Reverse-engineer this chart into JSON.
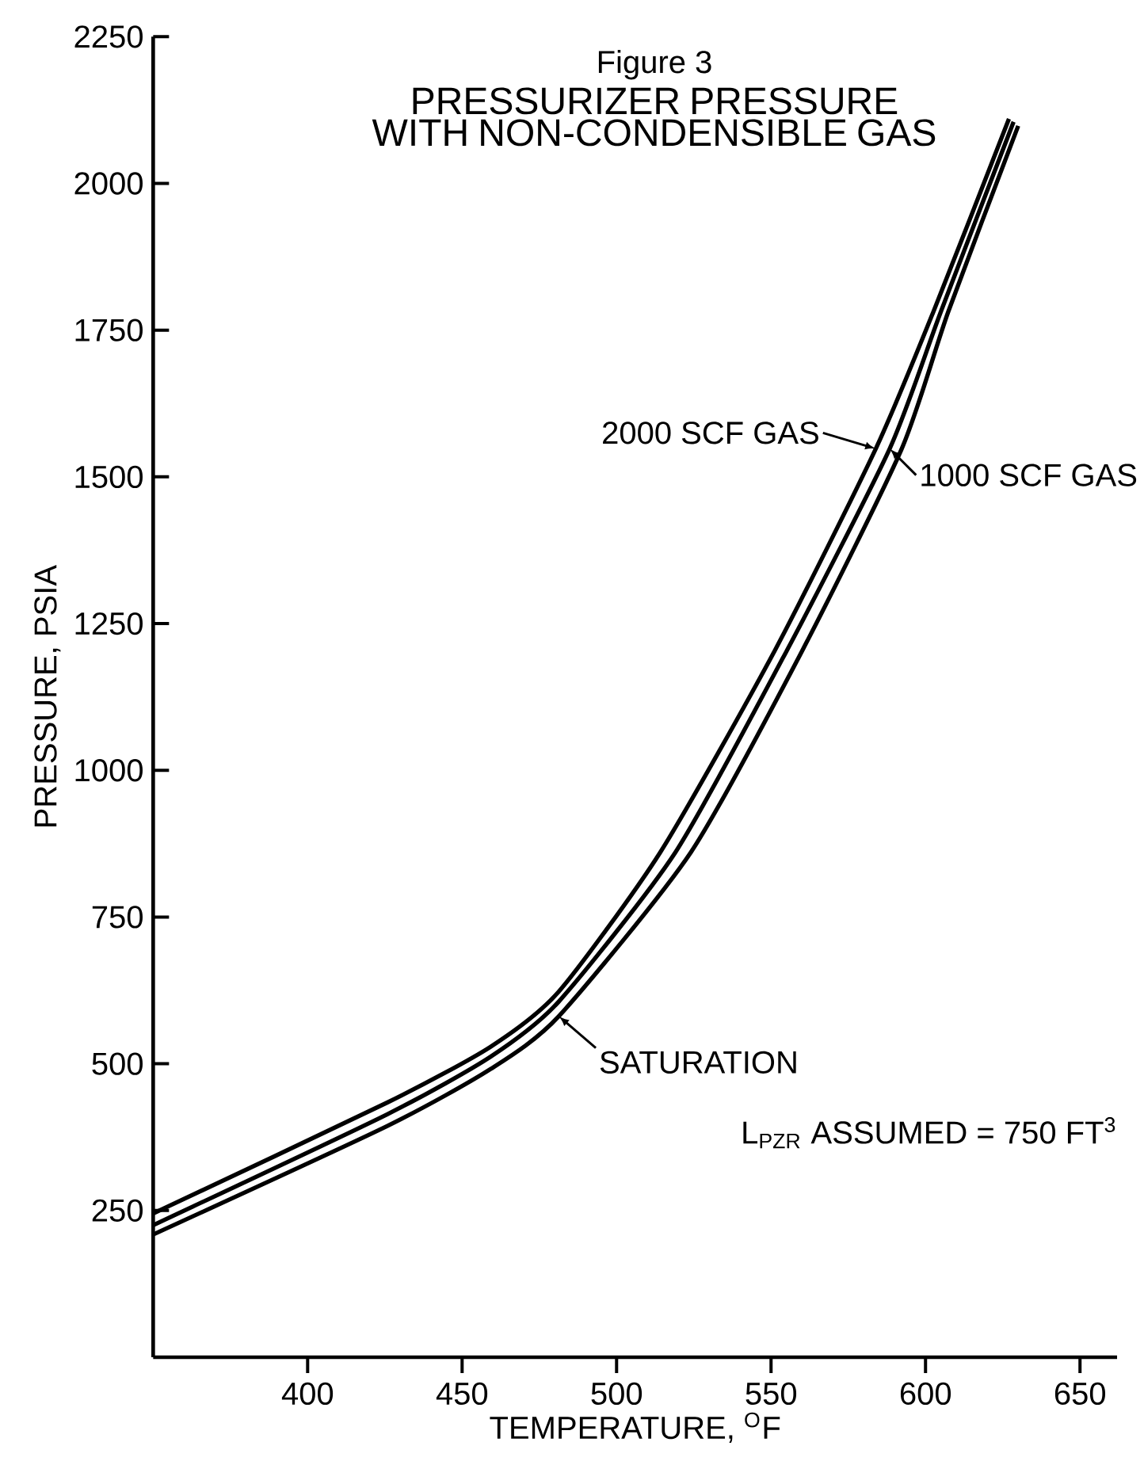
{
  "chart_data": {
    "type": "line",
    "title": "Figure 3",
    "subtitle": "PRESSURIZER PRESSURE WITH NON-CONDENSIBLE GAS",
    "xlabel": "TEMPERATURE, $^{O}$F",
    "ylabel": "PRESSURE, PSIA",
    "xlim": [
      350,
      662
    ],
    "ylim": [
      0,
      2250
    ],
    "xticks": [
      400,
      450,
      500,
      550,
      600,
      650
    ],
    "yticks": [
      250,
      500,
      750,
      1000,
      1250,
      1500,
      1750,
      2000,
      2250
    ],
    "grid": false,
    "legend": "right",
    "marker": "none",
    "line_style": "solid",
    "annotations": [
      "L$_{PZR}$ ASSUMED = 750 FT$^{3}$"
    ],
    "series": [
      {
        "name": "2000 SCF GAS",
        "color": "#000000",
        "x": [
          350,
          425.8,
          459.2,
          481.3,
          514.1,
          551.2,
          583.9,
          602.6,
          627
        ],
        "values": [
          245,
          434,
          529,
          623,
          860,
          1204,
          1548,
          1782,
          2110
        ]
      },
      {
        "name": "1000 SCF GAS",
        "color": "#000000",
        "x": [
          350,
          425.8,
          459.2,
          481.3,
          519,
          555.1,
          588.4,
          605,
          628.5
        ],
        "values": [
          225,
          414,
          512,
          606,
          860,
          1204,
          1548,
          1782,
          2105
        ]
      },
      {
        "name": "SATURATION",
        "color": "#000000",
        "x": [
          350,
          425.8,
          459.2,
          481.3,
          524,
          560.1,
          592.3,
          607.4,
          630
        ],
        "values": [
          209,
          394,
          491,
          581,
          860,
          1204,
          1548,
          1782,
          2098
        ]
      }
    ]
  }
}
